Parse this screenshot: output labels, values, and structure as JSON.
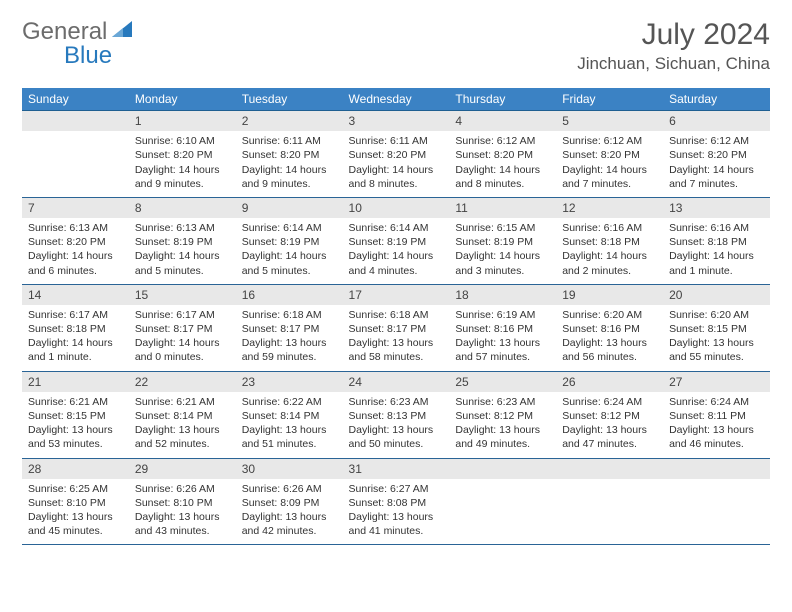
{
  "logo": {
    "text1": "General",
    "text2": "Blue",
    "sail_color": "#2779bd"
  },
  "title": "July 2024",
  "location": "Jinchuan, Sichuan, China",
  "colors": {
    "header_bg": "#3b82c4",
    "header_text": "#ffffff",
    "daynum_bg": "#e8e8e8",
    "row_border": "#2a6496"
  },
  "day_headers": [
    "Sunday",
    "Monday",
    "Tuesday",
    "Wednesday",
    "Thursday",
    "Friday",
    "Saturday"
  ],
  "weeks": [
    [
      {
        "n": "",
        "lines": []
      },
      {
        "n": "1",
        "lines": [
          "Sunrise: 6:10 AM",
          "Sunset: 8:20 PM",
          "Daylight: 14 hours and 9 minutes."
        ]
      },
      {
        "n": "2",
        "lines": [
          "Sunrise: 6:11 AM",
          "Sunset: 8:20 PM",
          "Daylight: 14 hours and 9 minutes."
        ]
      },
      {
        "n": "3",
        "lines": [
          "Sunrise: 6:11 AM",
          "Sunset: 8:20 PM",
          "Daylight: 14 hours and 8 minutes."
        ]
      },
      {
        "n": "4",
        "lines": [
          "Sunrise: 6:12 AM",
          "Sunset: 8:20 PM",
          "Daylight: 14 hours and 8 minutes."
        ]
      },
      {
        "n": "5",
        "lines": [
          "Sunrise: 6:12 AM",
          "Sunset: 8:20 PM",
          "Daylight: 14 hours and 7 minutes."
        ]
      },
      {
        "n": "6",
        "lines": [
          "Sunrise: 6:12 AM",
          "Sunset: 8:20 PM",
          "Daylight: 14 hours and 7 minutes."
        ]
      }
    ],
    [
      {
        "n": "7",
        "lines": [
          "Sunrise: 6:13 AM",
          "Sunset: 8:20 PM",
          "Daylight: 14 hours and 6 minutes."
        ]
      },
      {
        "n": "8",
        "lines": [
          "Sunrise: 6:13 AM",
          "Sunset: 8:19 PM",
          "Daylight: 14 hours and 5 minutes."
        ]
      },
      {
        "n": "9",
        "lines": [
          "Sunrise: 6:14 AM",
          "Sunset: 8:19 PM",
          "Daylight: 14 hours and 5 minutes."
        ]
      },
      {
        "n": "10",
        "lines": [
          "Sunrise: 6:14 AM",
          "Sunset: 8:19 PM",
          "Daylight: 14 hours and 4 minutes."
        ]
      },
      {
        "n": "11",
        "lines": [
          "Sunrise: 6:15 AM",
          "Sunset: 8:19 PM",
          "Daylight: 14 hours and 3 minutes."
        ]
      },
      {
        "n": "12",
        "lines": [
          "Sunrise: 6:16 AM",
          "Sunset: 8:18 PM",
          "Daylight: 14 hours and 2 minutes."
        ]
      },
      {
        "n": "13",
        "lines": [
          "Sunrise: 6:16 AM",
          "Sunset: 8:18 PM",
          "Daylight: 14 hours and 1 minute."
        ]
      }
    ],
    [
      {
        "n": "14",
        "lines": [
          "Sunrise: 6:17 AM",
          "Sunset: 8:18 PM",
          "Daylight: 14 hours and 1 minute."
        ]
      },
      {
        "n": "15",
        "lines": [
          "Sunrise: 6:17 AM",
          "Sunset: 8:17 PM",
          "Daylight: 14 hours and 0 minutes."
        ]
      },
      {
        "n": "16",
        "lines": [
          "Sunrise: 6:18 AM",
          "Sunset: 8:17 PM",
          "Daylight: 13 hours and 59 minutes."
        ]
      },
      {
        "n": "17",
        "lines": [
          "Sunrise: 6:18 AM",
          "Sunset: 8:17 PM",
          "Daylight: 13 hours and 58 minutes."
        ]
      },
      {
        "n": "18",
        "lines": [
          "Sunrise: 6:19 AM",
          "Sunset: 8:16 PM",
          "Daylight: 13 hours and 57 minutes."
        ]
      },
      {
        "n": "19",
        "lines": [
          "Sunrise: 6:20 AM",
          "Sunset: 8:16 PM",
          "Daylight: 13 hours and 56 minutes."
        ]
      },
      {
        "n": "20",
        "lines": [
          "Sunrise: 6:20 AM",
          "Sunset: 8:15 PM",
          "Daylight: 13 hours and 55 minutes."
        ]
      }
    ],
    [
      {
        "n": "21",
        "lines": [
          "Sunrise: 6:21 AM",
          "Sunset: 8:15 PM",
          "Daylight: 13 hours and 53 minutes."
        ]
      },
      {
        "n": "22",
        "lines": [
          "Sunrise: 6:21 AM",
          "Sunset: 8:14 PM",
          "Daylight: 13 hours and 52 minutes."
        ]
      },
      {
        "n": "23",
        "lines": [
          "Sunrise: 6:22 AM",
          "Sunset: 8:14 PM",
          "Daylight: 13 hours and 51 minutes."
        ]
      },
      {
        "n": "24",
        "lines": [
          "Sunrise: 6:23 AM",
          "Sunset: 8:13 PM",
          "Daylight: 13 hours and 50 minutes."
        ]
      },
      {
        "n": "25",
        "lines": [
          "Sunrise: 6:23 AM",
          "Sunset: 8:12 PM",
          "Daylight: 13 hours and 49 minutes."
        ]
      },
      {
        "n": "26",
        "lines": [
          "Sunrise: 6:24 AM",
          "Sunset: 8:12 PM",
          "Daylight: 13 hours and 47 minutes."
        ]
      },
      {
        "n": "27",
        "lines": [
          "Sunrise: 6:24 AM",
          "Sunset: 8:11 PM",
          "Daylight: 13 hours and 46 minutes."
        ]
      }
    ],
    [
      {
        "n": "28",
        "lines": [
          "Sunrise: 6:25 AM",
          "Sunset: 8:10 PM",
          "Daylight: 13 hours and 45 minutes."
        ]
      },
      {
        "n": "29",
        "lines": [
          "Sunrise: 6:26 AM",
          "Sunset: 8:10 PM",
          "Daylight: 13 hours and 43 minutes."
        ]
      },
      {
        "n": "30",
        "lines": [
          "Sunrise: 6:26 AM",
          "Sunset: 8:09 PM",
          "Daylight: 13 hours and 42 minutes."
        ]
      },
      {
        "n": "31",
        "lines": [
          "Sunrise: 6:27 AM",
          "Sunset: 8:08 PM",
          "Daylight: 13 hours and 41 minutes."
        ]
      },
      {
        "n": "",
        "lines": []
      },
      {
        "n": "",
        "lines": []
      },
      {
        "n": "",
        "lines": []
      }
    ]
  ]
}
